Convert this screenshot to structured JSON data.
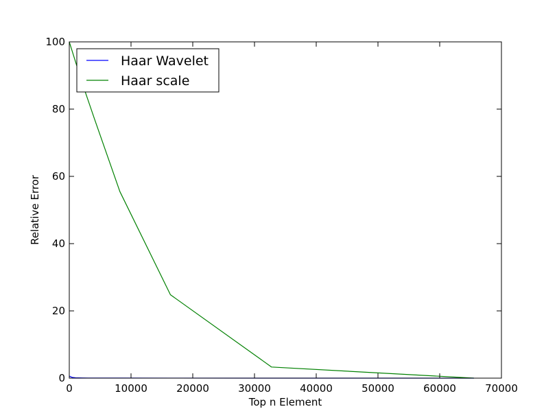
{
  "chart_data": {
    "type": "line",
    "title": "",
    "xlabel": "Top n Element",
    "ylabel": "Relative Error",
    "xlim": [
      0,
      70000
    ],
    "ylim": [
      0,
      100
    ],
    "x_ticks": [
      0,
      10000,
      20000,
      30000,
      40000,
      50000,
      60000,
      70000
    ],
    "y_ticks": [
      0,
      20,
      40,
      60,
      80,
      100
    ],
    "grid": false,
    "legend_position": "top-left",
    "series": [
      {
        "name": "Haar Wavelet",
        "color": "#0000ff",
        "x": [
          0,
          512,
          1024,
          2048,
          4096,
          8192,
          16384,
          32768,
          65536
        ],
        "y": [
          0.6,
          0.2,
          0.1,
          0.05,
          0.03,
          0.02,
          0.01,
          0.0,
          0.0
        ]
      },
      {
        "name": "Haar scale",
        "color": "#008000",
        "x": [
          0,
          512,
          1024,
          2048,
          4096,
          8192,
          16384,
          32768,
          65536
        ],
        "y": [
          100,
          97,
          94,
          88,
          77,
          55.5,
          24.8,
          3.3,
          0.0
        ]
      }
    ]
  }
}
